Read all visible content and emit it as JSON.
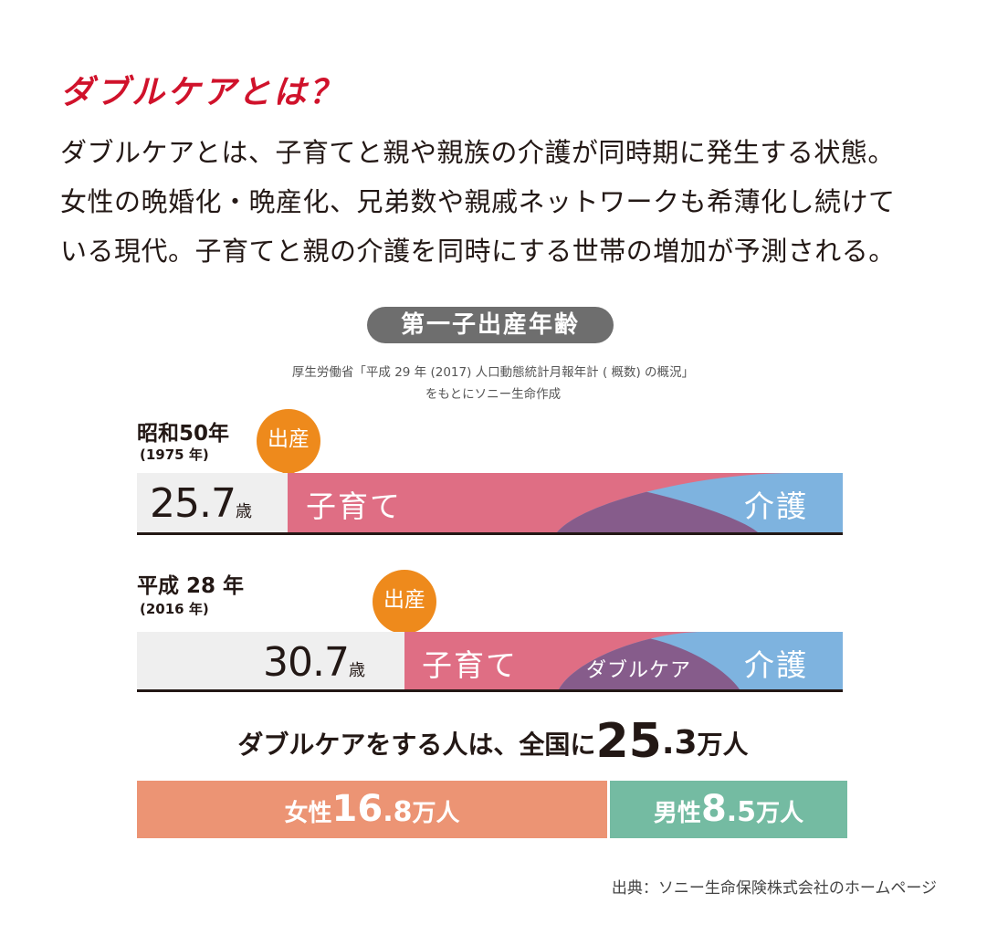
{
  "heading": "ダブルケアとは？",
  "intro_lines": [
    "ダブルケアとは、子育てと親や親族の介護が同時期に発生する状態。",
    "女性の晩婚化・晩産化、兄弟数や親戚ネットワークも希薄化し続けて",
    "いる現代。子育てと親の介護を同時にする世帯の増加が予測される。"
  ],
  "chart_title": "第一子出産年齢",
  "chart_source_line1": "厚生労働省「平成 29 年 (2017) 人口動態統計月報年計 ( 概数) の概況」",
  "chart_source_line2": "をもとにソニー生命作成",
  "era1": {
    "label": "昭和50年",
    "year": "(1975 年)",
    "bubble": "出産",
    "age": "25.7",
    "age_unit": "歳",
    "childcare": "子育て",
    "care": "介護"
  },
  "era2": {
    "label": "平成 28 年",
    "year": "(2016 年)",
    "bubble": "出産",
    "age": "30.7",
    "age_unit": "歳",
    "childcare": "子育て",
    "double": "ダブルケア",
    "care": "介護"
  },
  "summary": {
    "prefix": "ダブルケアをする人は、全国に",
    "number": "25",
    "decimal": ".3",
    "unit": "万人"
  },
  "gender": {
    "female_label": "女性",
    "female_int": "16",
    "female_dec": ".8",
    "female_unit": "万人",
    "female_value": 16.8,
    "male_label": "男性",
    "male_int": "8",
    "male_dec": ".5",
    "male_unit": "万人",
    "male_value": 8.5
  },
  "citation": "出典：ソニー生命保険株式会社のホームページ",
  "colors": {
    "title_red": "#d0122b",
    "childcare_pink": "#df6e84",
    "care_blue": "#7eb3df",
    "double_purple": "#865c8b",
    "bubble_orange": "#ee8a1c",
    "female_salmon": "#ec9474",
    "male_green": "#74bba2",
    "age_gray": "#efefef"
  }
}
